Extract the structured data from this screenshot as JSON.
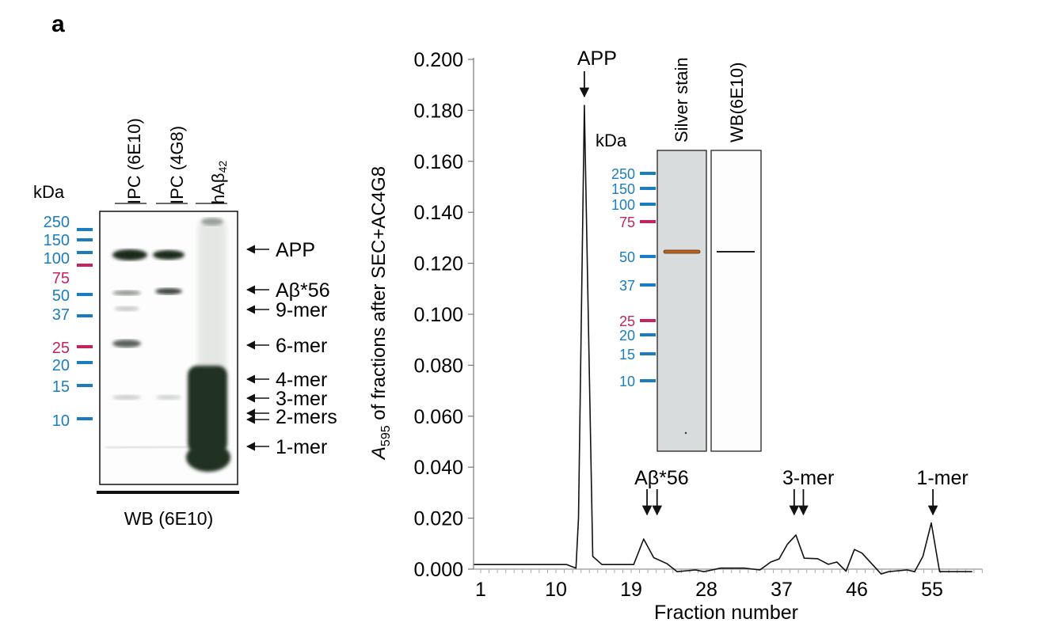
{
  "panel_label": "a",
  "blot": {
    "unit_label": "kDa",
    "lanes": [
      "IPC (6E10)",
      "IPC (4G8)",
      "hAβ",
      "42"
    ],
    "markers": [
      {
        "label": "250",
        "color": "#1a7dc0"
      },
      {
        "label": "150",
        "color": "#1a7dc0"
      },
      {
        "label": "100",
        "color": "#1a7dc0"
      },
      {
        "label": "75",
        "color": "#c3235f"
      },
      {
        "label": "50",
        "color": "#1a7dc0"
      },
      {
        "label": "37",
        "color": "#1a7dc0"
      },
      {
        "label": "25",
        "color": "#c3235f"
      },
      {
        "label": "20",
        "color": "#1a7dc0"
      },
      {
        "label": "15",
        "color": "#1a7dc0"
      },
      {
        "label": "10",
        "color": "#1a7dc0"
      }
    ],
    "band_labels": [
      "APP",
      "Aβ*56",
      "9-mer",
      "6-mer",
      "4-mer",
      "3-mer",
      "2-mers",
      "1-mer"
    ],
    "footer": "WB (6E10)"
  },
  "inset": {
    "unit_label": "kDa",
    "lanes": [
      "Silver stain",
      "WB(6E10)"
    ],
    "markers": [
      "250",
      "150",
      "100",
      "75",
      "50",
      "37",
      "25",
      "20",
      "15",
      "10"
    ],
    "band_color": "#b5651d"
  },
  "chart_data": {
    "type": "line",
    "xlabel": "Fraction number",
    "ylabel_prefix": "A",
    "ylabel_sub": "595",
    "ylabel_rest": " of fractions after SEC+AC4G8",
    "xlim": [
      0,
      61
    ],
    "ylim": [
      0,
      0.2
    ],
    "xticks": [
      1,
      10,
      19,
      28,
      37,
      46,
      55
    ],
    "yticks": [
      "0.000",
      "0.020",
      "0.040",
      "0.060",
      "0.080",
      "0.100",
      "0.120",
      "0.140",
      "0.160",
      "0.180",
      "0.200"
    ],
    "grid": false,
    "series": [
      {
        "x": [
          0.2,
          11.3,
          12.4,
          12.7,
          13.4,
          14.4,
          15.5,
          19.3,
          20.5,
          21.7,
          23.3,
          24.5,
          26.7,
          27.7,
          29.7,
          32.5,
          34.4,
          35.7,
          36.7,
          37.7,
          38.7,
          39.7,
          41.3,
          42.6,
          43.6,
          44.7,
          45.7,
          46.6,
          48.9,
          49.8,
          52.0,
          52.9,
          53.9,
          54.9,
          55.9,
          59.8
        ],
        "y": [
          0.0018,
          0.0018,
          0.0004,
          0.02,
          0.182,
          0.005,
          0.0018,
          0.0018,
          0.0118,
          0.0045,
          0.0021,
          -0.001,
          -0.0003,
          -0.001,
          0.0004,
          0.0004,
          -0.0003,
          0.0028,
          0.004,
          0.0098,
          0.0134,
          0.0043,
          0.0041,
          0.0019,
          0.0028,
          -0.0008,
          0.0077,
          0.0063,
          -0.0019,
          -0.001,
          -0.0003,
          -0.001,
          0.005,
          0.0181,
          -0.001,
          -0.001
        ]
      }
    ],
    "annotations": [
      {
        "text": "APP",
        "x": [
          13.4
        ]
      },
      {
        "text": "Aβ*56",
        "x": [
          20.9,
          22.1
        ]
      },
      {
        "text": "3-mer",
        "x": [
          38.5,
          39.6
        ]
      },
      {
        "text": "1-mer",
        "x": [
          55.1
        ]
      }
    ]
  }
}
